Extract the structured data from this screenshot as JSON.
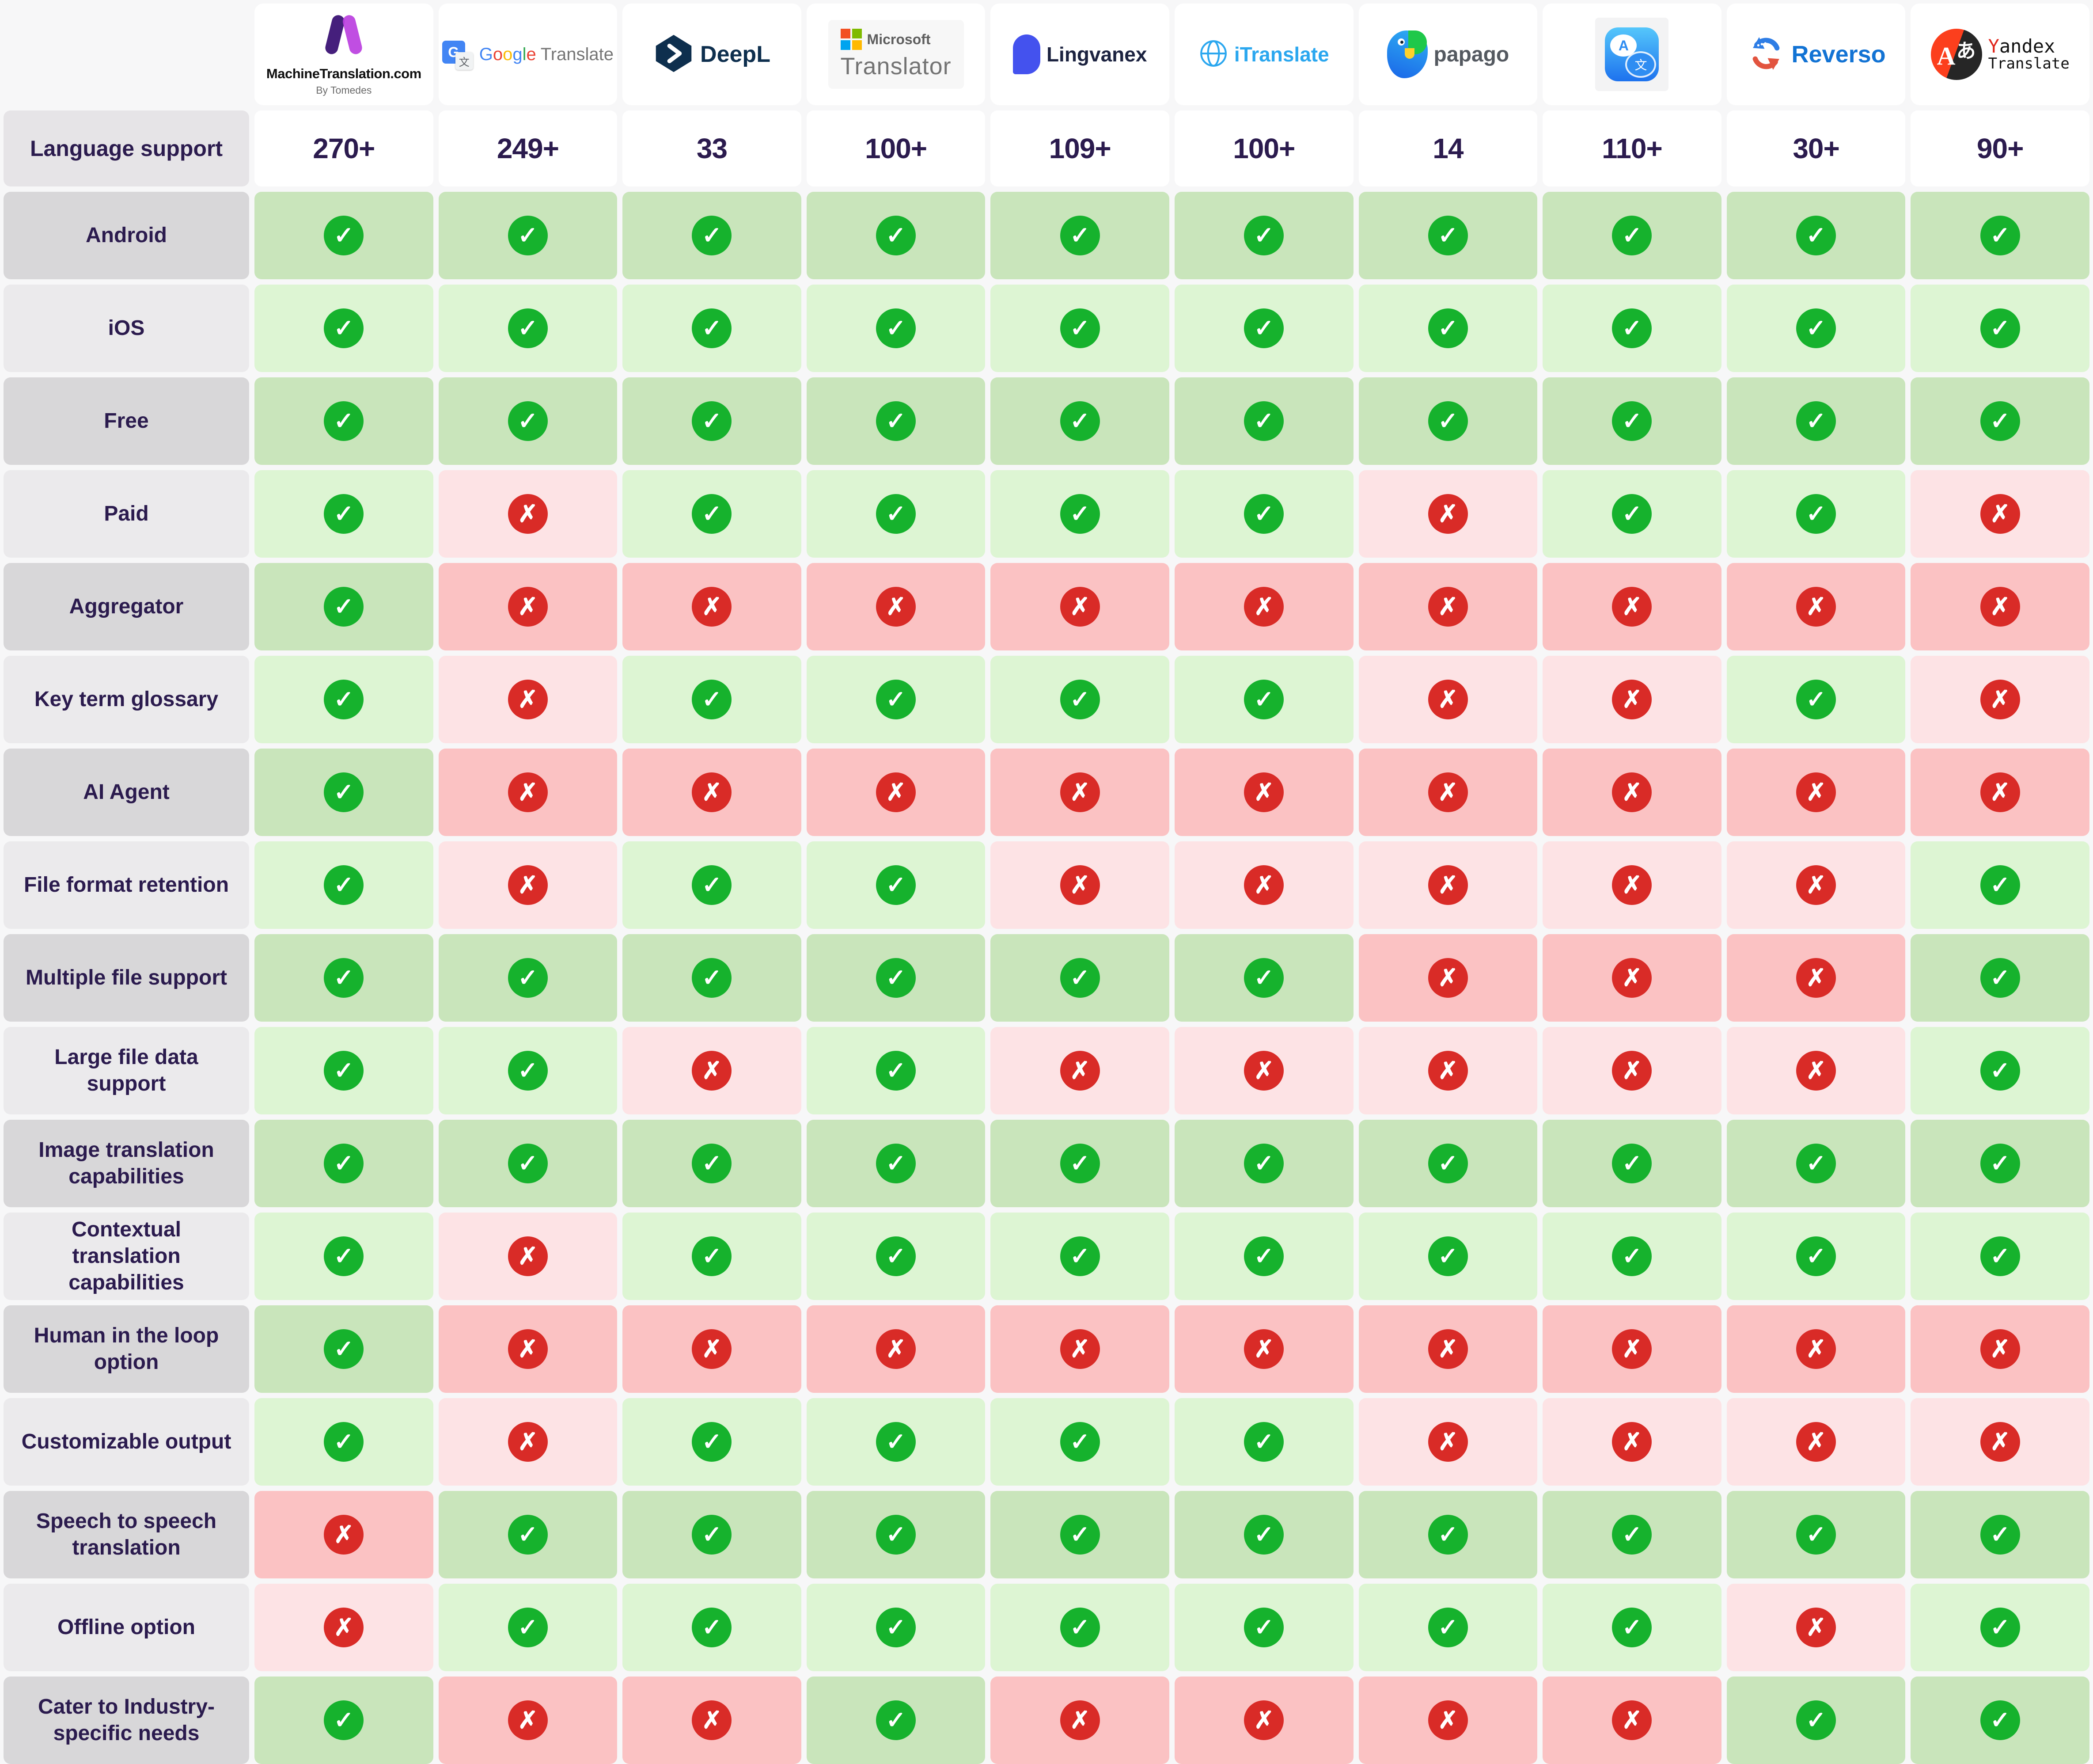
{
  "header": {
    "machinetranslation": {
      "title": "MachineTranslation.com",
      "subtitle": "By Tomedes"
    },
    "google": {
      "l1": "G",
      "l2": "o",
      "l3": "o",
      "l4": "g",
      "l5": "l",
      "l6": "e",
      "word2": "Translate",
      "icon_letter": "G",
      "icon_han": "文"
    },
    "deepl": {
      "name": "DeepL"
    },
    "microsoft": {
      "line1": "Microsoft",
      "line2": "Translator"
    },
    "lingvanex": {
      "name": "Lingvanex"
    },
    "itranslate": {
      "name": "iTranslate"
    },
    "papago": {
      "name": "papago"
    },
    "apple": {
      "bubble_a": "A",
      "bubble_b": "文"
    },
    "reverso": {
      "name": "Reverso"
    },
    "yandex": {
      "y": "Y",
      "rest": "andex",
      "line2": "Translate",
      "circle_a": "A",
      "circle_han": "あ"
    }
  },
  "labels": {
    "language_support": "Language support"
  },
  "icons": {
    "check": "✓",
    "cross": "✗"
  },
  "colors": {
    "page_bg": "#f7f7f8",
    "card_bg": "#ffffff",
    "label_dark_bg": "#d8d7d9",
    "label_light_bg": "#ebeaec",
    "label_text": "#2b1b4e",
    "cell_green_dark": "#c9e5bb",
    "cell_green_light": "#ddf5d3",
    "cell_red_dark": "#fbc2c3",
    "cell_red_light": "#fde3e5",
    "check_green": "#16b22d",
    "cross_red": "#d92b27"
  },
  "chart_data": {
    "type": "table",
    "title": "Machine translation tools feature comparison",
    "columns": [
      {
        "id": "machinetranslation",
        "name": "MachineTranslation.com",
        "lang_support": "270+"
      },
      {
        "id": "google-translate",
        "name": "Google Translate",
        "lang_support": "249+"
      },
      {
        "id": "deepl",
        "name": "DeepL",
        "lang_support": "33"
      },
      {
        "id": "microsoft-translator",
        "name": "Microsoft Translator",
        "lang_support": "100+"
      },
      {
        "id": "lingvanex",
        "name": "Lingvanex",
        "lang_support": "109+"
      },
      {
        "id": "itranslate",
        "name": "iTranslate",
        "lang_support": "100+"
      },
      {
        "id": "papago",
        "name": "papago",
        "lang_support": "14"
      },
      {
        "id": "apple-translate",
        "name": "Apple Translate",
        "lang_support": "110+"
      },
      {
        "id": "reverso",
        "name": "Reverso",
        "lang_support": "30+"
      },
      {
        "id": "yandex-translate",
        "name": "Yandex Translate",
        "lang_support": "90+"
      }
    ],
    "rows": [
      {
        "label": "Android",
        "values": [
          1,
          1,
          1,
          1,
          1,
          1,
          1,
          1,
          1,
          1
        ]
      },
      {
        "label": "iOS",
        "values": [
          1,
          1,
          1,
          1,
          1,
          1,
          1,
          1,
          1,
          1
        ]
      },
      {
        "label": "Free",
        "values": [
          1,
          1,
          1,
          1,
          1,
          1,
          1,
          1,
          1,
          1
        ]
      },
      {
        "label": "Paid",
        "values": [
          1,
          0,
          1,
          1,
          1,
          1,
          0,
          1,
          1,
          0
        ]
      },
      {
        "label": "Aggregator",
        "values": [
          1,
          0,
          0,
          0,
          0,
          0,
          0,
          0,
          0,
          0
        ]
      },
      {
        "label": "Key term glossary",
        "values": [
          1,
          0,
          1,
          1,
          1,
          1,
          0,
          0,
          1,
          0
        ]
      },
      {
        "label": "AI Agent",
        "values": [
          1,
          0,
          0,
          0,
          0,
          0,
          0,
          0,
          0,
          0
        ]
      },
      {
        "label": "File format retention",
        "values": [
          1,
          0,
          1,
          1,
          0,
          0,
          0,
          0,
          0,
          1
        ]
      },
      {
        "label": "Multiple file support",
        "values": [
          1,
          1,
          1,
          1,
          1,
          1,
          0,
          0,
          0,
          1
        ]
      },
      {
        "label": "Large file data support",
        "values": [
          1,
          1,
          0,
          1,
          0,
          0,
          0,
          0,
          0,
          1
        ]
      },
      {
        "label": "Image translation capabilities",
        "values": [
          1,
          1,
          1,
          1,
          1,
          1,
          1,
          1,
          1,
          1
        ]
      },
      {
        "label": "Contextual translation capabilities",
        "values": [
          1,
          0,
          1,
          1,
          1,
          1,
          1,
          1,
          1,
          1
        ]
      },
      {
        "label": "Human in the loop option",
        "values": [
          1,
          0,
          0,
          0,
          0,
          0,
          0,
          0,
          0,
          0
        ]
      },
      {
        "label": "Customizable output",
        "values": [
          1,
          0,
          1,
          1,
          1,
          1,
          0,
          0,
          0,
          0
        ]
      },
      {
        "label": "Speech to speech translation",
        "values": [
          0,
          1,
          1,
          1,
          1,
          1,
          1,
          1,
          1,
          1
        ]
      },
      {
        "label": "Offline option",
        "values": [
          0,
          1,
          1,
          1,
          1,
          1,
          1,
          1,
          0,
          1
        ]
      },
      {
        "label": "Cater to Industry-specific needs",
        "values": [
          1,
          0,
          0,
          1,
          0,
          0,
          0,
          0,
          1,
          1
        ]
      }
    ]
  }
}
